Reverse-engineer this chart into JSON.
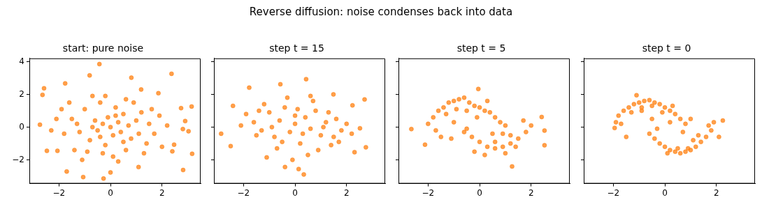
{
  "chart_data": [
    {
      "type": "scatter",
      "title": "start: pure noise",
      "annotations": [
        "Reverse diffusion: noise condenses back into data"
      ],
      "color": "#ff7f0e",
      "marker": "circle",
      "xlim": [
        -3.15,
        3.5
      ],
      "xticks": [
        -2,
        0,
        2
      ],
      "ylim": [
        -3.45,
        4.2
      ],
      "yticks": [
        -2,
        0,
        2,
        4
      ],
      "x": [
        -0.43,
        -0.81,
        0.81,
        2.37,
        -2.58,
        -1.76,
        -2.64,
        -2.74,
        -2.47,
        -2.06,
        -1.7,
        -1.06,
        -0.27,
        0,
        1.09,
        2.82,
        3.17,
        3.15,
        2.74,
        2.9,
        3.03,
        2.81,
        2.4,
        2.47,
        1.19,
        1.86,
        -1.5,
        -1.2,
        -1,
        -0.8,
        -0.6,
        -0.5,
        -0.4,
        -0.3,
        -0.2,
        -0.1,
        0,
        0.1,
        0.2,
        0.3,
        0.4,
        0.5,
        0.6,
        0.7,
        0.8,
        0.9,
        1,
        1.1,
        1.2,
        1.4,
        1.5,
        1.7,
        1.9,
        2,
        -1.8,
        -2.1,
        -1.9,
        -1.4,
        -1.1,
        -0.7,
        -0.2,
        0.3,
        0.6,
        1.3,
        -1.6,
        -0.9,
        0.1,
        -0.4,
        0.2,
        -0.7,
        1.6,
        -2.3,
        2.2,
        -1.3,
        0.5,
        -0.3
      ],
      "values": [
        3.85,
        3.16,
        3.02,
        3.26,
        2.37,
        2.67,
        1.97,
        0.15,
        -1.45,
        -1.45,
        -2.71,
        -3.05,
        -3.14,
        -2.77,
        -2.44,
        -2.62,
        -1.63,
        1.26,
        1.16,
        0.37,
        -0.25,
        -0.12,
        -1.48,
        -1.07,
        2.3,
        2.07,
        0.5,
        -0.3,
        1.1,
        -0.8,
        0.4,
        -0.2,
        1.5,
        0.2,
        -1.1,
        0.6,
        0,
        -0.5,
        1.2,
        0.3,
        -0.3,
        0.8,
        -1.4,
        0.1,
        -0.7,
        1.5,
        0.4,
        -0.4,
        0.9,
        -1,
        0.2,
        -0.4,
        0.7,
        -1.2,
        -0.4,
        0.5,
        1.1,
        -1.4,
        -2,
        1.9,
        1.9,
        -2.1,
        1.7,
        -1.6,
        1.5,
        -1.5,
        -1.8,
        -0.6,
        0.7,
        0,
        1.1,
        -0.2,
        0.1,
        0.2,
        -0.9,
        -1.6
      ]
    },
    {
      "type": "scatter",
      "title": "step t = 15",
      "color": "#ff7f0e",
      "marker": "circle",
      "tick_labels": "x",
      "xlim": [
        -3.15,
        3.5
      ],
      "xticks": [
        -2,
        0,
        2
      ],
      "ylim": [
        -3.45,
        4.2
      ],
      "yticks": [
        -2,
        0,
        2,
        4
      ],
      "x": [
        -2.87,
        -2.5,
        0.43,
        -1.78,
        2.7,
        2.75,
        0.34,
        -0.39,
        2.52,
        2.31,
        -2.41,
        2.23,
        1.49,
        -0.57,
        -1.1,
        0.14,
        -1.6,
        -1.3,
        -1,
        -0.8,
        -0.6,
        -0.4,
        -0.2,
        0,
        0.2,
        0.4,
        0.6,
        0.8,
        1,
        1.2,
        1.4,
        1.6,
        1.8,
        2,
        -1.9,
        -1.2,
        -0.7,
        -0.3,
        0.1,
        0.5,
        0.9,
        1.3,
        -1.5,
        -0.9,
        -0.5,
        0,
        0.3,
        0.7,
        1.1,
        1.7,
        -2.1,
        2.2,
        -0.1,
        0.6,
        -1.4,
        1.5
      ],
      "values": [
        -0.4,
        -1.16,
        2.93,
        2.41,
        1.69,
        -1.23,
        -2.89,
        -2.44,
        -0.07,
        -1.53,
        1.3,
        1.33,
        2,
        2.62,
        -1.85,
        -2.56,
        0.3,
        -0.2,
        0.9,
        -0.6,
        0.4,
        1.2,
        -0.3,
        0.2,
        -1.0,
        0.6,
        -0.1,
        1.0,
        -0.5,
        0.3,
        -1.1,
        0.5,
        -0.2,
        0.2,
        0.8,
        1.4,
        -1.3,
        1.8,
        1.1,
        -1.7,
        -1.4,
        0.9,
        -0.5,
        0.0,
        -0.9,
        0.7,
        -0.4,
        1.6,
        0.0,
        -0.9,
        0.1,
        -0.4,
        -2.0,
        1.9,
        1.0,
        -0.6
      ]
    },
    {
      "type": "scatter",
      "title": "step t = 5",
      "color": "#ff7f0e",
      "marker": "circle",
      "tick_labels": "x",
      "xlim": [
        -3.15,
        3.5
      ],
      "xticks": [
        -2,
        0,
        2
      ],
      "ylim": [
        -3.45,
        4.2
      ],
      "yticks": [
        -2,
        0,
        2,
        4
      ],
      "x": [
        -2.65,
        -2.12,
        -0.05,
        1.26,
        2.52,
        2.52,
        2.41,
        -2.0,
        -1.8,
        -1.6,
        -1.4,
        -1.2,
        -1.0,
        -0.8,
        -0.6,
        -0.4,
        -0.2,
        0,
        0.2,
        0.4,
        0.6,
        0.8,
        1.0,
        -1.7,
        -1.3,
        -0.9,
        -0.5,
        -0.1,
        0.3,
        -0.6,
        -0.3,
        0,
        0.3,
        0.6,
        0.9,
        1.2,
        1.5,
        1.8,
        2.0,
        -0.2,
        0.2,
        0.6,
        1.0,
        1.4,
        1.7,
        -1.5,
        -1.0,
        -0.5,
        0.5,
        1.2,
        -1.1,
        0.9
      ],
      "values": [
        -0.12,
        -1.07,
        2.33,
        -2.4,
        -0.21,
        -1.11,
        0.62,
        0.2,
        0.6,
        1.0,
        1.2,
        1.5,
        1.6,
        1.7,
        1.8,
        1.5,
        1.3,
        1.2,
        1.0,
        0.9,
        0.6,
        0.3,
        0.1,
        -0.2,
        0.8,
        1.1,
        1.0,
        0.6,
        1.6,
        -0.3,
        -0.6,
        -0.9,
        -1.2,
        -1.3,
        -1.2,
        -1.0,
        -0.7,
        -0.3,
        0.1,
        -1.5,
        -1.7,
        -0.9,
        -1.6,
        -1.2,
        0.4,
        -0.6,
        0.3,
        -0.1,
        -0.4,
        -0.5,
        -0.7,
        -0.4
      ]
    },
    {
      "type": "scatter",
      "title": "step t = 0",
      "color": "#ff7f0e",
      "marker": "circle",
      "tick_labels": "x",
      "xlim": [
        -3.15,
        3.5
      ],
      "xticks": [
        -2,
        0,
        2
      ],
      "ylim": [
        -3.45,
        4.2
      ],
      "yticks": [
        -2,
        0,
        2,
        4
      ],
      "x": [
        -1.95,
        -1.9,
        -1.8,
        -1.6,
        -1.4,
        -1.2,
        -1.0,
        -0.8,
        -0.6,
        -0.4,
        -0.2,
        0,
        0.2,
        0.4,
        0.6,
        0.8,
        -1.7,
        -1.3,
        -0.9,
        -0.5,
        -0.1,
        0.3,
        -0.6,
        -0.4,
        -0.2,
        0,
        0.2,
        0.4,
        0.6,
        0.8,
        1.0,
        1.2,
        1.4,
        1.6,
        1.8,
        1.9,
        2.1,
        2.25,
        0.1,
        0.5,
        0.9,
        1.3,
        1.7,
        -1.1,
        -0.5,
        0.2,
        -0.3,
        0.7,
        1.0,
        -1.5,
        -0.9,
        1.1
      ],
      "values": [
        -0.05,
        0.3,
        0.7,
        1.0,
        1.2,
        1.4,
        1.5,
        1.6,
        1.65,
        1.5,
        1.4,
        1.2,
        1.0,
        0.8,
        0.5,
        0.2,
        0.2,
        0.9,
        1.2,
        1.3,
        0.9,
        1.3,
        -0.4,
        -0.7,
        -1.0,
        -1.2,
        -1.4,
        -1.5,
        -1.6,
        -1.5,
        -1.4,
        -1.2,
        -0.9,
        -0.6,
        -0.2,
        0.3,
        -0.6,
        0.4,
        -1.6,
        -1.3,
        -1.3,
        -0.5,
        0.1,
        1.95,
        0.5,
        0.3,
        -0.1,
        -0.3,
        0.5,
        -0.6,
        1.0,
        -0.8
      ]
    }
  ]
}
